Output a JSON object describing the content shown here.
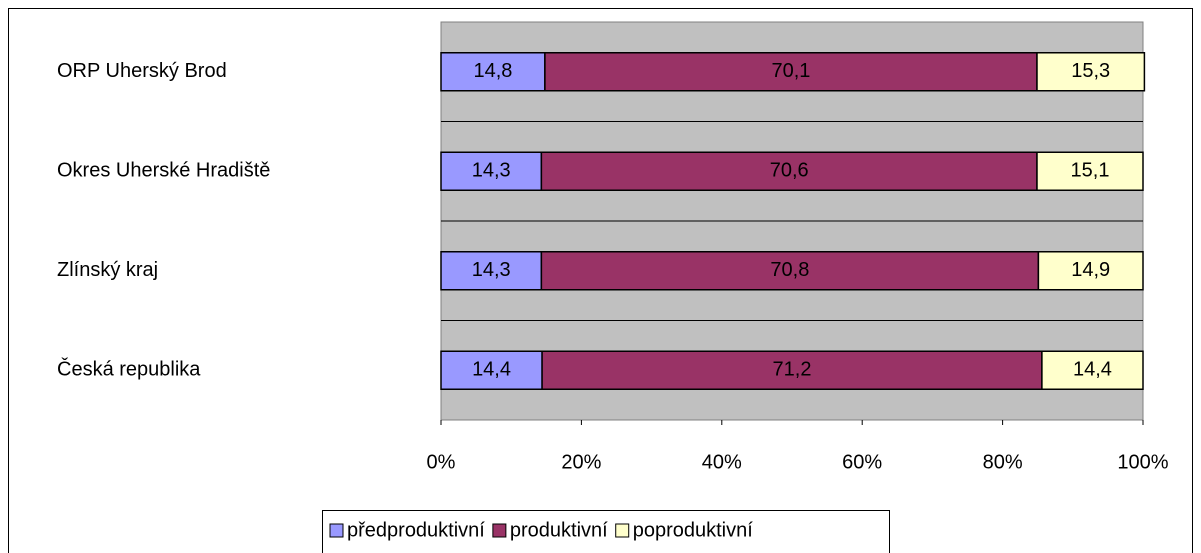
{
  "chart_data": {
    "type": "stacked-bar-horizontal",
    "categories": [
      "ORP Uherský Brod",
      "Okres Uherské Hradiště",
      "Zlínský kraj",
      "Česká republika"
    ],
    "series": [
      {
        "name": "předproduktivní",
        "color": "#9999ff",
        "values": [
          14.8,
          14.3,
          14.3,
          14.4
        ],
        "value_labels": [
          "14,8",
          "14,3",
          "14,3",
          "14,4"
        ]
      },
      {
        "name": "produktivní",
        "color": "#993366",
        "values": [
          70.1,
          70.6,
          70.8,
          71.2
        ],
        "value_labels": [
          "70,1",
          "70,6",
          "70,8",
          "71,2"
        ]
      },
      {
        "name": "poproduktivní",
        "color": "#ffffcc",
        "values": [
          15.3,
          15.1,
          14.9,
          14.4
        ],
        "value_labels": [
          "15,3",
          "15,1",
          "14,9",
          "14,4"
        ]
      }
    ],
    "xlim": [
      0,
      100
    ],
    "xticks": [
      {
        "value": 0,
        "label": "0%"
      },
      {
        "value": 20,
        "label": "20%"
      },
      {
        "value": 40,
        "label": "40%"
      },
      {
        "value": 60,
        "label": "60%"
      },
      {
        "value": 80,
        "label": "80%"
      },
      {
        "value": 100,
        "label": "100%"
      }
    ],
    "legend": "bottom"
  }
}
